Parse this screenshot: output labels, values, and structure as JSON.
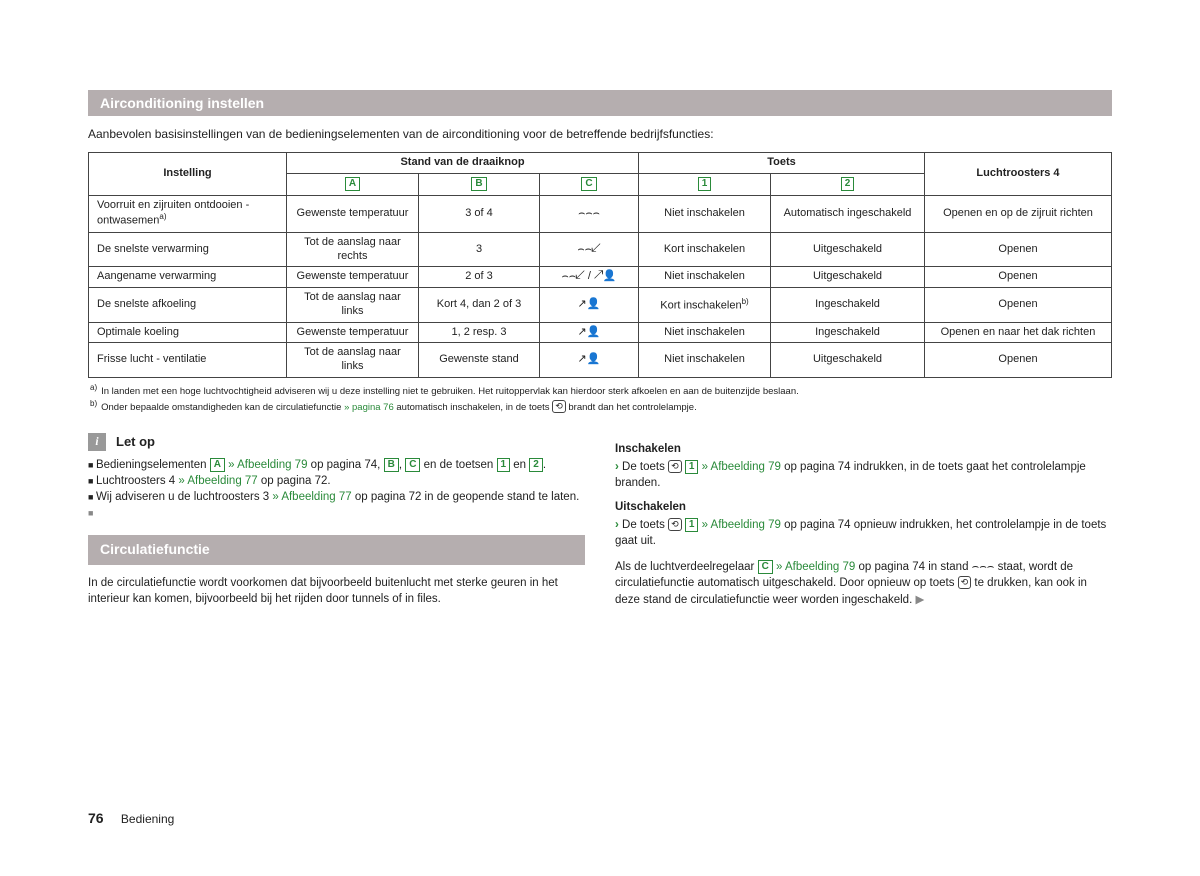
{
  "section1": {
    "title": "Airconditioning instellen",
    "intro": "Aanbevolen basisinstellingen van de bedieningselementen van de airconditioning voor de betreffende bedrijfsfuncties:"
  },
  "table": {
    "headers": {
      "instelling": "Instelling",
      "stand": "Stand van de draaiknop",
      "toets": "Toets",
      "lucht": "Luchtroosters 4",
      "A": "A",
      "B": "B",
      "C": "C",
      "one": "1",
      "two": "2"
    },
    "rows": [
      {
        "c0": "Voorruit en zijruiten ontdooien - ontwasemen",
        "sup": "a)",
        "c1": "Gewenste temperatuur",
        "c2": "3 of 4",
        "c3": "⌢⌢⌢",
        "c4": "Niet inschakelen",
        "c5": "Automatisch ingeschakeld",
        "c6": "Openen en op de zijruit richten"
      },
      {
        "c0": "De snelste verwarming",
        "c1": "Tot de aanslag naar rechts",
        "c2": "3",
        "c3": "⌢⌢↙",
        "c4": "Kort inschakelen",
        "c5": "Uitgeschakeld",
        "c6": "Openen"
      },
      {
        "c0": "Aangename verwarming",
        "c1": "Gewenste temperatuur",
        "c2": "2 of 3",
        "c3": "⌢⌢↙ / ↗👤",
        "c4": "Niet inschakelen",
        "c5": "Uitgeschakeld",
        "c6": "Openen"
      },
      {
        "c0": "De snelste afkoeling",
        "c1": "Tot de aanslag naar links",
        "c2": "Kort 4, dan 2 of 3",
        "c3": "↗👤",
        "c4": "Kort inschakelen",
        "sup4": "b)",
        "c5": "Ingeschakeld",
        "c6": "Openen"
      },
      {
        "c0": "Optimale koeling",
        "c1": "Gewenste temperatuur",
        "c2": "1, 2 resp. 3",
        "c3": "↗👤",
        "c4": "Niet inschakelen",
        "c5": "Ingeschakeld",
        "c6": "Openen en naar het dak richten"
      },
      {
        "c0": "Frisse lucht - ventilatie",
        "c1": "Tot de aanslag naar links",
        "c2": "Gewenste stand",
        "c3": "↗👤",
        "c4": "Niet inschakelen",
        "c5": "Uitgeschakeld",
        "c6": "Openen"
      }
    ]
  },
  "footnotes": {
    "a": "In landen met een hoge luchtvochtigheid adviseren wij u deze instelling niet te gebruiken. Het ruitoppervlak kan hierdoor sterk afkoelen en aan de buitenzijde beslaan.",
    "b_pre": "Onder bepaalde omstandigheden kan de circulatiefunctie ",
    "b_link": "» pagina 76",
    "b_post": " automatisch inschakelen, in de toets ",
    "b_end": " brandt dan het controlelampje."
  },
  "letop": {
    "title": "Let op",
    "l1_pre": "Bedieningselementen ",
    "l1_link": " » Afbeelding 79",
    "l1_mid": " op pagina 74, ",
    "l1_end": " en de toetsen ",
    "l1_fin": " en ",
    "l2_pre": "Luchtroosters 4 ",
    "l2_link": "» Afbeelding 77",
    "l2_end": " op pagina 72.",
    "l3_pre": "Wij adviseren u de luchtroosters 3 ",
    "l3_link": "» Afbeelding 77",
    "l3_end": " op pagina 72 in de geopende stand te laten."
  },
  "section2": {
    "title": "Circulatiefunctie",
    "para": "In de circulatiefunctie wordt voorkomen dat bijvoorbeeld buitenlucht met sterke geuren in het interieur kan komen, bijvoorbeeld bij het rijden door tunnels of in files."
  },
  "right": {
    "insch": "Inschakelen",
    "insch_pre": "De toets ",
    "insch_link": " » Afbeelding 79",
    "insch_end": " op pagina 74 indrukken, in de toets gaat het controlelampje branden.",
    "uitsch": "Uitschakelen",
    "uitsch_pre": "De toets ",
    "uitsch_link": " » Afbeelding 79",
    "uitsch_end": " op pagina 74 opnieuw indrukken, het controlelampje in de toets gaat uit.",
    "para2_pre": "Als de luchtverdeelregelaar ",
    "para2_link": " » Afbeelding 79",
    "para2_mid": " op pagina 74 in stand ",
    "para2_icon": "⌢⌢⌢",
    "para2_post": " staat, wordt de circulatiefunctie automatisch uitgeschakeld. Door opnieuw op toets ",
    "para2_end": " te drukken, kan ook in deze stand de circulatiefunctie weer worden ingeschakeld."
  },
  "footer": {
    "page": "76",
    "section": "Bediening"
  }
}
